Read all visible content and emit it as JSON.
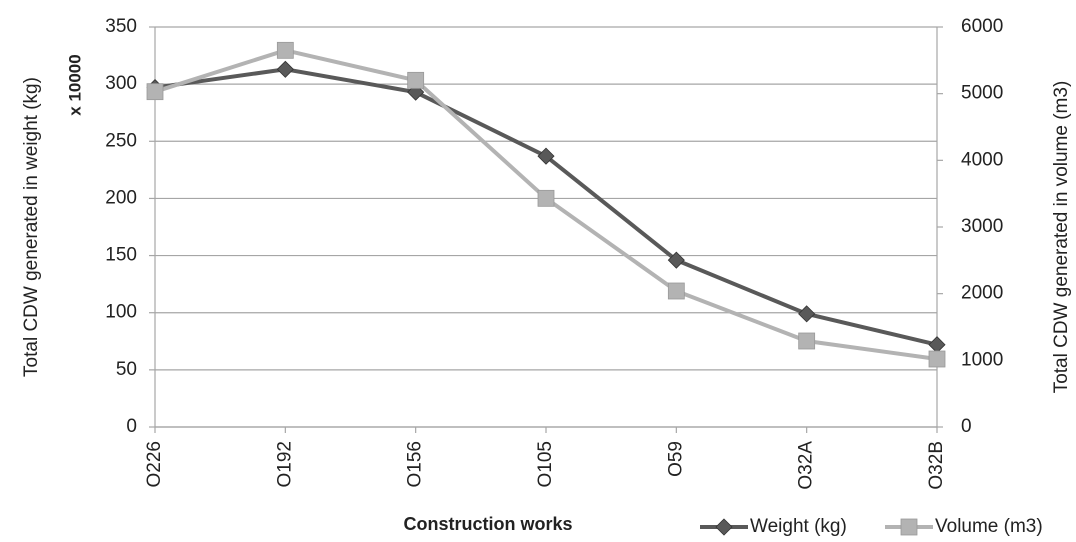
{
  "chart_data": {
    "type": "line",
    "x_label": "Construction works",
    "y_label": "Total CDW generated in weight (kg)",
    "y_axis_note": "x 10000",
    "y2_label": "Total CDW generated in volume (m3)",
    "categories": [
      "O226",
      "O192",
      "O156",
      "O105",
      "O59",
      "O32A",
      "O32B"
    ],
    "series": [
      {
        "name": "Weight (kg)",
        "color": "#595959",
        "marker": "diamond",
        "values": [
          297,
          313,
          293,
          237,
          146,
          99,
          72
        ]
      },
      {
        "name": "Volume (m3)",
        "color": "#b3b3b3",
        "marker": "square",
        "axis": "y2",
        "values": [
          5030,
          5650,
          5200,
          3430,
          2040,
          1290,
          1020
        ]
      }
    ],
    "ylim": [
      0,
      350
    ],
    "yticks": [
      0,
      50,
      100,
      150,
      200,
      250,
      300,
      350
    ],
    "y2lim": [
      0,
      6000
    ],
    "y2ticks": [
      0,
      1000,
      2000,
      3000,
      4000,
      5000,
      6000
    ],
    "grid": true,
    "legend": "bottom-right"
  }
}
